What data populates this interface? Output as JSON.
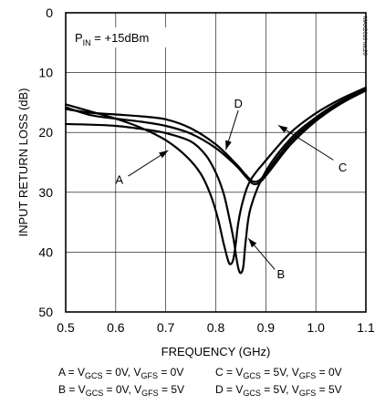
{
  "chart_data": {
    "type": "line",
    "xlabel": "FREQUENCY (GHz)",
    "ylabel": "INPUT RETURN LOSS (dB)",
    "xlim": [
      0.5,
      1.1
    ],
    "ylim": [
      0,
      50
    ],
    "y_inverted": true,
    "grid": true,
    "x_ticks": [
      "0.5",
      "0.6",
      "0.7",
      "0.8",
      "0.9",
      "1.0",
      "1.1"
    ],
    "y_ticks": [
      "0",
      "10",
      "20",
      "30",
      "40",
      "50"
    ],
    "watermark": "MAX2010 toc20",
    "annotation": {
      "prefix": "P",
      "subscript": "IN",
      "suffix": " = +15dBm"
    },
    "series": [
      {
        "name": "A",
        "x": [
          0.5,
          0.55,
          0.6,
          0.65,
          0.7,
          0.74,
          0.77,
          0.79,
          0.805,
          0.815,
          0.825,
          0.83,
          0.835,
          0.84,
          0.845,
          0.855,
          0.87,
          0.9,
          0.95,
          1.0,
          1.05,
          1.1
        ],
        "y": [
          15.3,
          16.5,
          17.7,
          19.2,
          21.3,
          23.9,
          26.9,
          30.5,
          34.6,
          38.3,
          41.5,
          42.0,
          41.2,
          38.6,
          35.1,
          31.2,
          27.9,
          24.7,
          20.0,
          16.8,
          14.4,
          12.5
        ]
      },
      {
        "name": "B",
        "x": [
          0.5,
          0.55,
          0.6,
          0.65,
          0.7,
          0.75,
          0.78,
          0.8,
          0.815,
          0.825,
          0.835,
          0.84,
          0.845,
          0.85,
          0.855,
          0.86,
          0.87,
          0.9,
          0.95,
          1.0,
          1.05,
          1.1
        ],
        "y": [
          18.6,
          18.7,
          18.9,
          19.4,
          20.1,
          21.5,
          23.8,
          26.7,
          30.0,
          33.5,
          37.6,
          40.3,
          42.7,
          43.5,
          42.4,
          38.0,
          32.5,
          26.5,
          21.0,
          17.5,
          14.8,
          12.8
        ]
      },
      {
        "name": "C",
        "x": [
          0.5,
          0.55,
          0.6,
          0.65,
          0.7,
          0.75,
          0.8,
          0.84,
          0.86,
          0.875,
          0.89,
          0.91,
          0.95,
          1.0,
          1.05,
          1.1
        ],
        "y": [
          15.8,
          17.1,
          17.7,
          18.2,
          18.9,
          20.2,
          22.6,
          25.5,
          27.4,
          28.6,
          28.2,
          26.2,
          22.0,
          18.1,
          15.2,
          13.0
        ]
      },
      {
        "name": "D",
        "x": [
          0.5,
          0.55,
          0.6,
          0.65,
          0.7,
          0.75,
          0.8,
          0.84,
          0.86,
          0.875,
          0.89,
          0.91,
          0.95,
          1.0,
          1.05,
          1.1
        ],
        "y": [
          16.1,
          16.7,
          17.0,
          17.3,
          17.8,
          19.3,
          22.0,
          25.2,
          27.1,
          28.2,
          27.8,
          25.7,
          21.5,
          17.8,
          15.0,
          12.8
        ]
      }
    ],
    "conditions": [
      {
        "label": "A",
        "gcs": "0V",
        "gfs": "0V"
      },
      {
        "label": "B",
        "gcs": "0V",
        "gfs": "5V"
      },
      {
        "label": "C",
        "gcs": "5V",
        "gfs": "0V"
      },
      {
        "label": "D",
        "gcs": "5V",
        "gfs": "5V"
      }
    ],
    "condition_text": {
      "v": "V",
      "gcs": "GCS",
      "gfs": "GFS",
      "eq": " = ",
      "sep": ", "
    }
  }
}
